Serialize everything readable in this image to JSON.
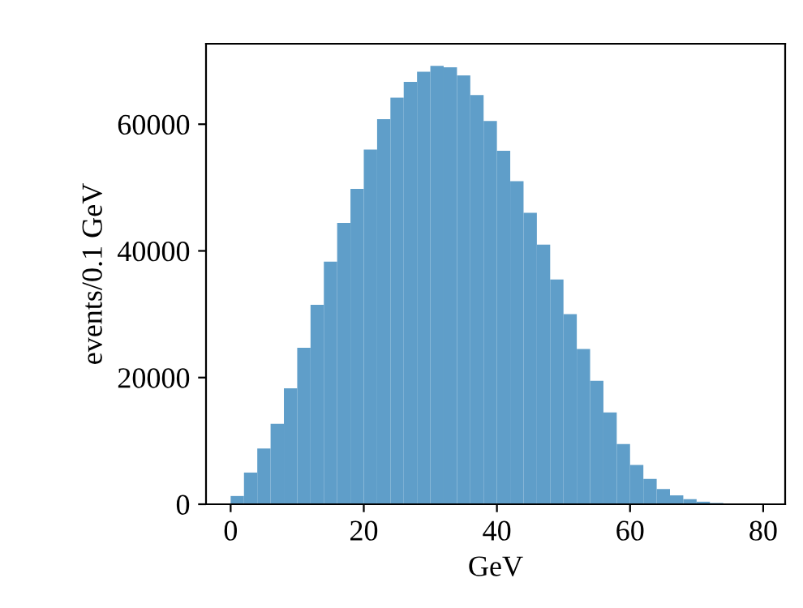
{
  "chart_data": {
    "type": "histogram",
    "xlabel": "GeV",
    "ylabel": "events/0.1 GeV",
    "bins": [
      0,
      2,
      4,
      6,
      8,
      10,
      12,
      14,
      16,
      18,
      20,
      22,
      24,
      26,
      28,
      30,
      32,
      34,
      36,
      38,
      40,
      42,
      44,
      46,
      48,
      50,
      52,
      54,
      56,
      58,
      60,
      62,
      64,
      66,
      68,
      70,
      72,
      74,
      76,
      78,
      80
    ],
    "values": [
      1300,
      5000,
      8800,
      12700,
      18300,
      24700,
      31500,
      38300,
      44400,
      49800,
      56000,
      60800,
      64200,
      66700,
      68300,
      69200,
      69000,
      67700,
      64600,
      60500,
      55800,
      51000,
      46000,
      41000,
      35500,
      30000,
      24500,
      19500,
      14500,
      9500,
      6200,
      4000,
      2400,
      1400,
      800,
      400,
      200,
      100,
      0,
      0
    ],
    "color": "#5f9ec9",
    "xlim": [
      -3.7,
      83.3
    ],
    "ylim": [
      0,
      72700
    ],
    "xticks": [
      0,
      20,
      40,
      60,
      80
    ],
    "yticks": [
      0,
      20000,
      40000,
      60000
    ],
    "grid": false
  }
}
